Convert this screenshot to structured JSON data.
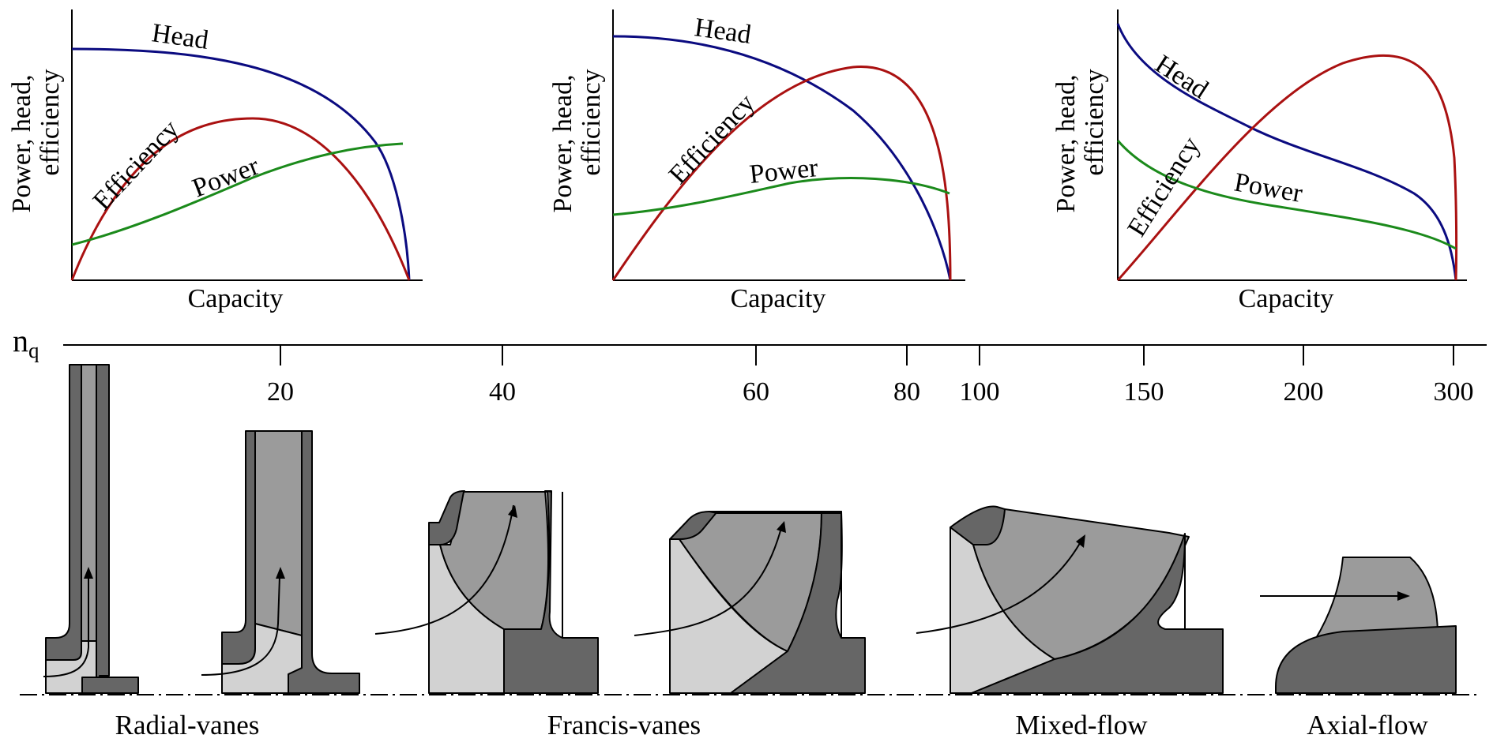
{
  "colors": {
    "head": "#0b0b80",
    "efficiency": "#aa1111",
    "power": "#1b8a1b",
    "shade_light": "#d2d2d2",
    "shade_mid": "#9b9b9b",
    "shade_dark": "#666666"
  },
  "charts": [
    {
      "ylabel_line1": "Power, head,",
      "ylabel_line2": "efficiency",
      "xlabel": "Capacity",
      "head_label": "Head",
      "efficiency_label": "Efficiency",
      "power_label": "Power"
    },
    {
      "ylabel_line1": "Power, head,",
      "ylabel_line2": "efficiency",
      "xlabel": "Capacity",
      "head_label": "Head",
      "efficiency_label": "Efficiency",
      "power_label": "Power"
    },
    {
      "ylabel_line1": "Power, head,",
      "ylabel_line2": "efficiency",
      "xlabel": "Capacity",
      "head_label": "Head",
      "efficiency_label": "Efficiency",
      "power_label": "Power"
    }
  ],
  "nq_scale": {
    "symbol": "n",
    "subscript": "q",
    "ticks": [
      "20",
      "40",
      "60",
      "80",
      "100",
      "150",
      "200",
      "300"
    ]
  },
  "impeller_types": [
    "Radial-vanes",
    "Francis-vanes",
    "Mixed-flow",
    "Axial-flow"
  ]
}
